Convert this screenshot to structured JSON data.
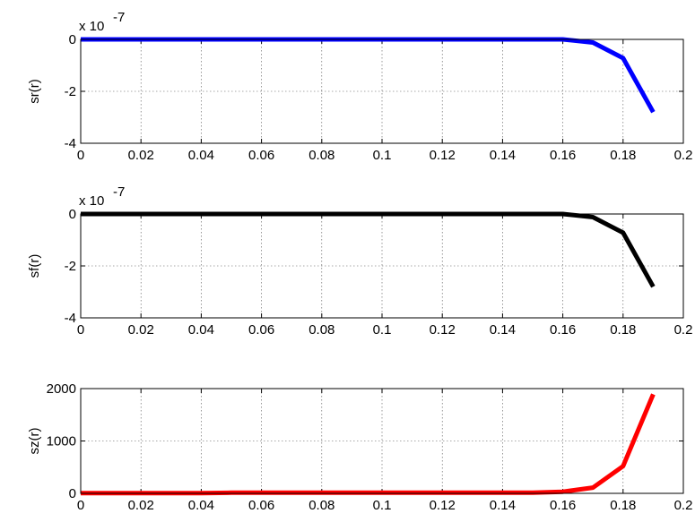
{
  "chart_data": [
    {
      "type": "line",
      "ylabel": "sr(r)",
      "exponent_base": "x 10",
      "exponent_power": "-7",
      "xlim": [
        0,
        0.2
      ],
      "ylim": [
        -4,
        0
      ],
      "grid": true,
      "x_ticks": [
        "0",
        "0.02",
        "0.04",
        "0.06",
        "0.08",
        "0.1",
        "0.12",
        "0.14",
        "0.16",
        "0.18",
        "0.2"
      ],
      "y_ticks": [
        "-4",
        "-2",
        "0"
      ],
      "y_tick_values": [
        -4,
        -2,
        0
      ],
      "color": "#0000ff",
      "series": [
        {
          "x": [
            0,
            0.01,
            0.02,
            0.03,
            0.04,
            0.05,
            0.06,
            0.07,
            0.08,
            0.09,
            0.1,
            0.11,
            0.12,
            0.13,
            0.14,
            0.15,
            0.16,
            0.17,
            0.18,
            0.19
          ],
          "y": [
            0,
            0,
            0,
            0,
            0,
            0,
            0,
            0,
            0,
            0,
            0,
            0,
            0,
            0,
            0,
            0,
            0,
            -0.12,
            -0.72,
            -2.8
          ]
        }
      ]
    },
    {
      "type": "line",
      "ylabel": "sf(r)",
      "exponent_base": "x 10",
      "exponent_power": "-7",
      "xlim": [
        0,
        0.2
      ],
      "ylim": [
        -4,
        0
      ],
      "grid": true,
      "x_ticks": [
        "0",
        "0.02",
        "0.04",
        "0.06",
        "0.08",
        "0.1",
        "0.12",
        "0.14",
        "0.16",
        "0.18",
        "0.2"
      ],
      "y_ticks": [
        "-4",
        "-2",
        "0"
      ],
      "y_tick_values": [
        -4,
        -2,
        0
      ],
      "color": "#000000",
      "series": [
        {
          "x": [
            0,
            0.01,
            0.02,
            0.03,
            0.04,
            0.05,
            0.06,
            0.07,
            0.08,
            0.09,
            0.1,
            0.11,
            0.12,
            0.13,
            0.14,
            0.15,
            0.16,
            0.17,
            0.18,
            0.19
          ],
          "y": [
            0,
            0,
            0,
            0,
            0,
            0,
            0,
            0,
            0,
            0,
            0,
            0,
            0,
            0,
            0,
            0,
            0,
            -0.12,
            -0.72,
            -2.8
          ]
        }
      ]
    },
    {
      "type": "line",
      "ylabel": "sz(r)",
      "exponent_base": "",
      "exponent_power": "",
      "xlim": [
        0,
        0.2
      ],
      "ylim": [
        0,
        2000
      ],
      "grid": true,
      "x_ticks": [
        "0",
        "0.02",
        "0.04",
        "0.06",
        "0.08",
        "0.1",
        "0.12",
        "0.14",
        "0.16",
        "0.18",
        "0.2"
      ],
      "y_ticks": [
        "0",
        "1000",
        "2000"
      ],
      "y_tick_values": [
        0,
        1000,
        2000
      ],
      "color": "#ff0000",
      "series": [
        {
          "x": [
            0,
            0.01,
            0.02,
            0.03,
            0.04,
            0.05,
            0.06,
            0.07,
            0.08,
            0.09,
            0.1,
            0.11,
            0.12,
            0.13,
            0.14,
            0.15,
            0.16,
            0.17,
            0.18,
            0.19
          ],
          "y": [
            3,
            3,
            3,
            3,
            3,
            12,
            12,
            12,
            12,
            12,
            12,
            12,
            12,
            12,
            12,
            14,
            30,
            110,
            520,
            1890
          ]
        }
      ]
    }
  ]
}
